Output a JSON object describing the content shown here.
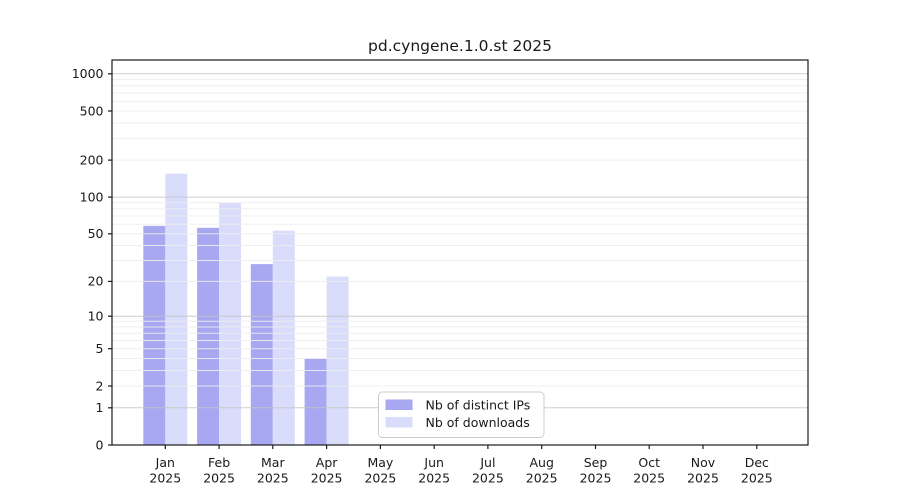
{
  "chart_data": {
    "type": "bar",
    "title": "pd.cyngene.1.0.st 2025",
    "categories": [
      "Jan",
      "Feb",
      "Mar",
      "Apr",
      "May",
      "Jun",
      "Jul",
      "Aug",
      "Sep",
      "Oct",
      "Nov",
      "Dec"
    ],
    "x_tick_second_line": "2025",
    "series": [
      {
        "key": "ips",
        "name": "Nb of distinct IPs",
        "color": "#a7a7f2",
        "values": [
          58,
          56,
          28,
          4,
          0,
          0,
          0,
          0,
          0,
          0,
          0,
          0
        ]
      },
      {
        "key": "downloads",
        "name": "Nb of downloads",
        "color": "#d9dcfa",
        "values": [
          155,
          90,
          53,
          22,
          0,
          0,
          0,
          0,
          0,
          0,
          0,
          0
        ]
      }
    ],
    "y_ticks": [
      0,
      1,
      2,
      5,
      10,
      20,
      50,
      100,
      200,
      500,
      1000
    ],
    "y_scale": "log10(value+1)",
    "ylim": [
      0,
      1300
    ],
    "grid": true,
    "legend_position": "lower center",
    "xlabel": "",
    "ylabel": ""
  },
  "colors": {
    "background": "#ffffff",
    "axis": "#1a1a1a",
    "grid_major": "#c6c6c6",
    "grid_minor": "#ededed",
    "legend_border": "#cccccc",
    "legend_background": "#ffffff"
  }
}
